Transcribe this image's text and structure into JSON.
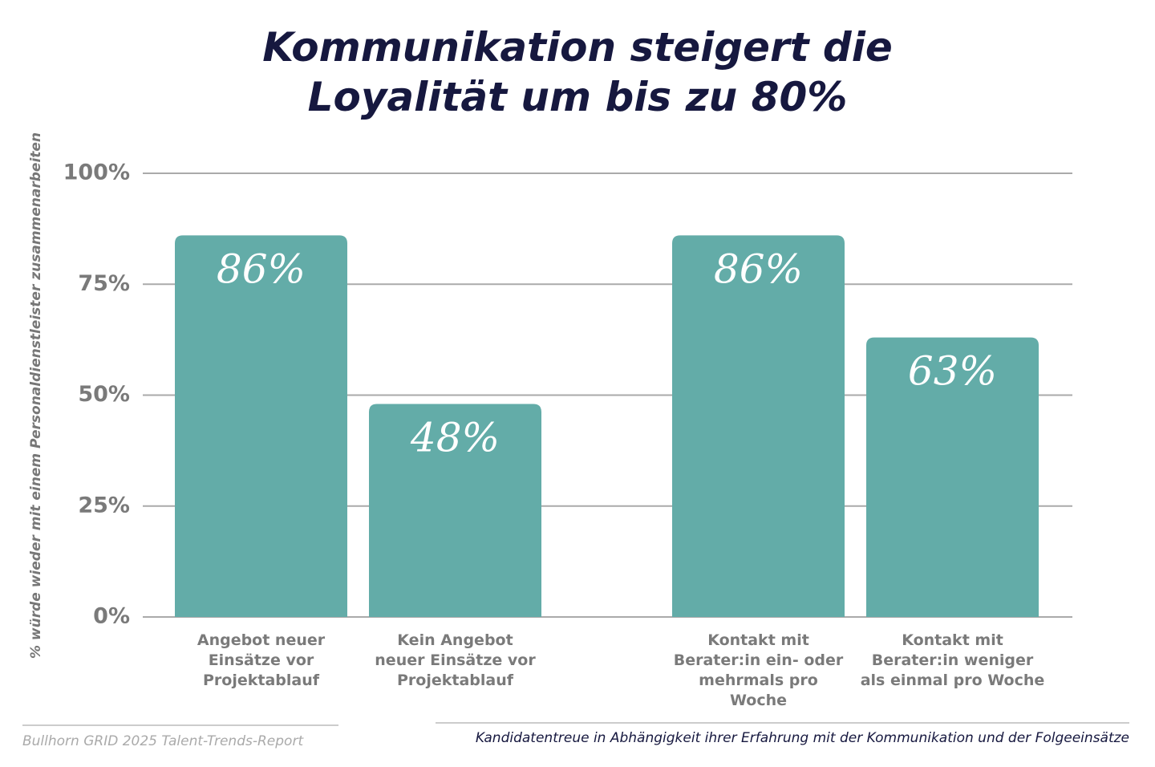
{
  "chart_data": {
    "type": "bar",
    "title": "Kommunikation steigert die\nLoyalität um bis zu 80%",
    "y_label": "% würde wieder mit einem Personaldienstleister zusammenarbeiten",
    "categories": [
      "Angebot neuer\nEinsätze vor\nProjektablauf",
      "Kein Angebot\nneuer Einsätze vor\nProjektablauf",
      "Kontakt mit\nBerater:in ein- oder\nmehrmals pro\nWoche",
      "Kontakt mit\nBerater:in weniger\nals einmal pro Woche"
    ],
    "values": [
      86,
      48,
      86,
      63
    ],
    "value_labels": [
      "86%",
      "48%",
      "86%",
      "63%"
    ],
    "color": "#63aca8",
    "ylim": [
      0,
      100
    ],
    "yticks": [
      {
        "value": 0,
        "label": "0%"
      },
      {
        "value": 25,
        "label": "25%"
      },
      {
        "value": 50,
        "label": "50%"
      },
      {
        "value": 75,
        "label": "75%"
      },
      {
        "value": 100,
        "label": "100%"
      }
    ],
    "grid": true,
    "source": "Bullhorn GRID 2025 Talent-Trends-Report",
    "footnote": "Kandidatentreue in Abhängigkeit ihrer Erfahrung mit der Kommunikation und der Folgeeinsätze"
  }
}
